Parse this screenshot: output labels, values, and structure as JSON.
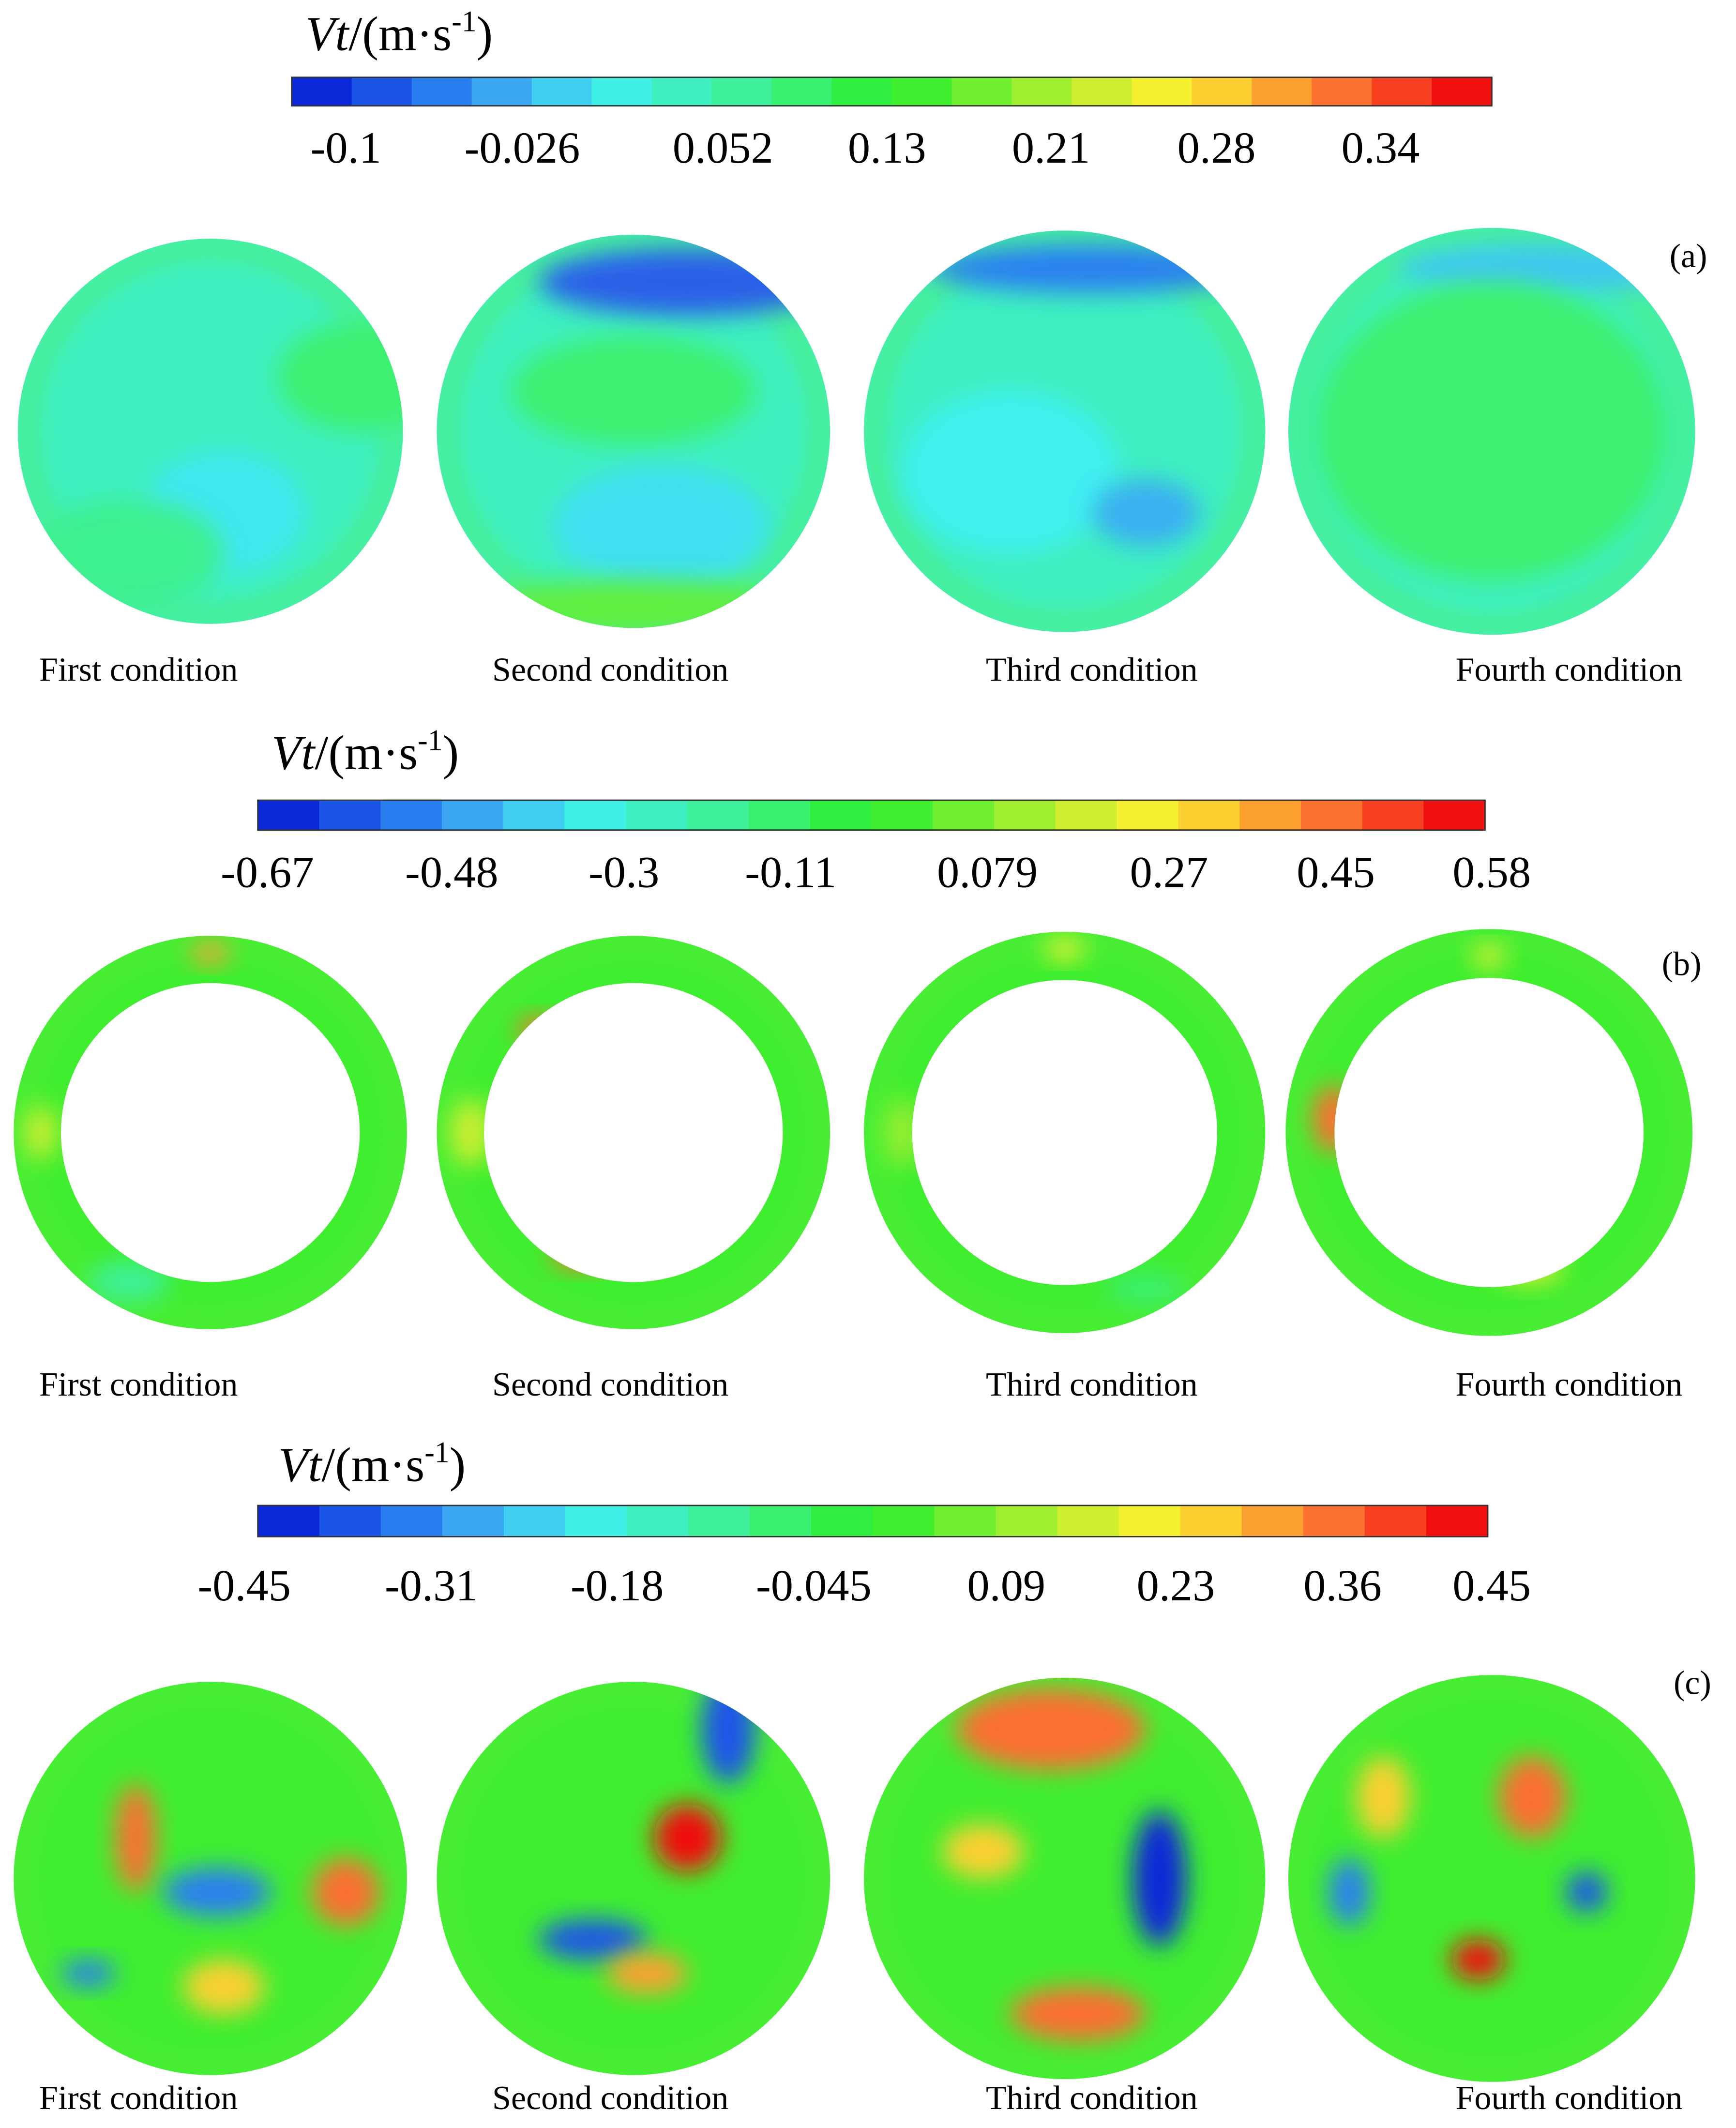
{
  "panels": [
    {
      "title": {
        "symbol": "Vt",
        "unit": "/(m·s",
        "exponent": "-1",
        "close": ")"
      },
      "ticks": [
        "-0.1",
        "-0.026",
        "0.052",
        "0.13",
        "0.21",
        "0.28",
        "0.34"
      ],
      "label": "(a)",
      "conditions": [
        "First condition",
        "Second condition",
        "Third condition",
        "Fourth condition"
      ]
    },
    {
      "title": {
        "symbol": "Vt",
        "unit": "/(m·s",
        "exponent": "-1",
        "close": ")"
      },
      "ticks": [
        "-0.67",
        "-0.48",
        "-0.3",
        "-0.11",
        "0.079",
        "0.27",
        "0.45",
        "0.58"
      ],
      "label": "(b)",
      "conditions": [
        "First condition",
        "Second condition",
        "Third condition",
        "Fourth condition"
      ]
    },
    {
      "title": {
        "symbol": "Vt",
        "unit": "/(m·s",
        "exponent": "-1",
        "close": ")"
      },
      "ticks": [
        "-0.45",
        "-0.31",
        "-0.18",
        "-0.045",
        "0.09",
        "0.23",
        "0.36",
        "0.45"
      ],
      "label": "(c)",
      "conditions": [
        "First condition",
        "Second condition",
        "Third condition",
        "Fourth condition"
      ]
    }
  ]
}
